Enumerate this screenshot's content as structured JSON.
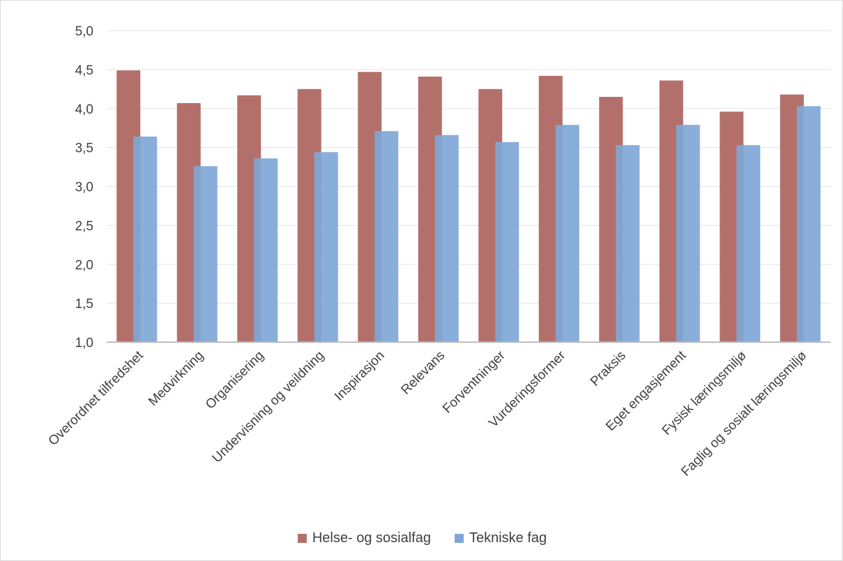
{
  "chart_data": {
    "type": "bar",
    "title": "",
    "xlabel": "",
    "ylabel": "",
    "ylim": [
      1.0,
      5.0
    ],
    "ytick_step": 0.5,
    "ytick_labels": [
      "1,0",
      "1,5",
      "2,0",
      "2,5",
      "3,0",
      "3,5",
      "4,0",
      "4,5",
      "5,0"
    ],
    "grid": true,
    "legend_position": "bottom",
    "categories": [
      "Overordnet tilfredshet",
      "Medvirkning",
      "Organisering",
      "Undervisning og veildning",
      "Inspirasjon",
      "Relevans",
      "Forventninger",
      "Vurderingsformer",
      "Praksis",
      "Eget engasjement",
      "Fysisk læringsmiljø",
      "Faglig og sosialt læringsmiljø"
    ],
    "series": [
      {
        "name": "Helse- og sosialfag",
        "color": "#b3706b",
        "values": [
          4.49,
          4.07,
          4.17,
          4.25,
          4.47,
          4.41,
          4.25,
          4.42,
          4.15,
          4.36,
          3.96,
          4.18
        ]
      },
      {
        "name": "Tekniske fag",
        "color": "#7fa7d6",
        "values": [
          3.64,
          3.26,
          3.36,
          3.44,
          3.71,
          3.66,
          3.57,
          3.79,
          3.53,
          3.79,
          3.53,
          4.03
        ]
      }
    ]
  }
}
